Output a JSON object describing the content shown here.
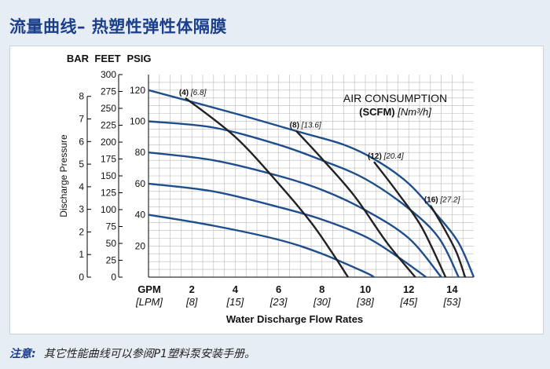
{
  "page": {
    "title": "流量曲线– 热塑性弹性体隔膜",
    "note_label": "注意:",
    "note_text": "其它性能曲线可以参阅P1塑料泵安装手册。"
  },
  "colors": {
    "title": "#1b3f8a",
    "background": "#e7edf5",
    "grid": "#b9b9b9",
    "pressure_curve": "#1f4e8c",
    "air_curve": "#222222"
  },
  "chart_data": {
    "type": "line",
    "title": "",
    "xlabel": "Water Discharge Flow Rates",
    "ylabel": "Discharge Pressure",
    "x_axis": {
      "unit_primary": "GPM",
      "unit_secondary": "[LPM]",
      "range": [
        0,
        15
      ],
      "ticks": [
        2,
        4,
        6,
        8,
        10,
        12,
        14
      ],
      "secondary_ticks": [
        "[8]",
        "[15]",
        "[23]",
        "[30]",
        "[38]",
        "[45]",
        "[53]"
      ]
    },
    "y_axes": {
      "psig": {
        "label": "PSIG",
        "range": [
          0,
          130
        ],
        "ticks": [
          20,
          40,
          60,
          80,
          100,
          120
        ]
      },
      "feet": {
        "label": "FEET",
        "ticks": [
          0,
          25,
          50,
          75,
          100,
          125,
          150,
          175,
          200,
          225,
          250,
          275,
          300
        ]
      },
      "bar": {
        "label": "BAR",
        "ticks": [
          0,
          1,
          2,
          3,
          4,
          5,
          6,
          7,
          8
        ]
      }
    },
    "grid": true,
    "air_legend": {
      "title": "AIR CONSUMPTION",
      "unit_bold": "(SCFM)",
      "unit_metric": "[Nm³/h]"
    },
    "pressure_series": [
      {
        "points": [
          [
            0,
            120
          ],
          [
            4,
            105
          ],
          [
            7,
            93
          ],
          [
            9,
            85
          ],
          [
            10.5,
            75
          ],
          [
            12,
            60
          ],
          [
            13.3,
            40
          ],
          [
            14.3,
            22
          ],
          [
            15,
            0
          ]
        ]
      },
      {
        "points": [
          [
            0,
            100
          ],
          [
            3,
            96
          ],
          [
            6,
            85
          ],
          [
            8,
            75
          ],
          [
            10,
            63
          ],
          [
            12,
            44
          ],
          [
            13.4,
            25
          ],
          [
            14.3,
            0
          ]
        ]
      },
      {
        "points": [
          [
            0,
            80
          ],
          [
            3,
            75
          ],
          [
            6,
            65
          ],
          [
            8,
            56
          ],
          [
            10,
            43
          ],
          [
            12,
            25
          ],
          [
            13.5,
            0
          ]
        ]
      },
      {
        "points": [
          [
            0,
            60
          ],
          [
            3,
            55
          ],
          [
            6,
            45
          ],
          [
            8,
            37
          ],
          [
            10,
            26
          ],
          [
            11.5,
            13
          ],
          [
            12.8,
            0
          ]
        ]
      },
      {
        "points": [
          [
            0,
            40
          ],
          [
            3,
            33
          ],
          [
            6,
            24
          ],
          [
            8,
            15
          ],
          [
            10,
            3
          ],
          [
            10.4,
            0
          ]
        ]
      }
    ],
    "air_series": [
      {
        "label": "(4)",
        "metric": "[6.8]",
        "points": [
          [
            1.7,
            115
          ],
          [
            4,
            90
          ],
          [
            6,
            60
          ],
          [
            7.5,
            35
          ],
          [
            8.5,
            15
          ],
          [
            9.2,
            0
          ]
        ]
      },
      {
        "label": "(8)",
        "metric": "[13.6]",
        "points": [
          [
            6.8,
            94
          ],
          [
            8,
            76
          ],
          [
            9.5,
            52
          ],
          [
            11,
            22
          ],
          [
            12.3,
            0
          ]
        ]
      },
      {
        "label": "(12)",
        "metric": "[20.4]",
        "points": [
          [
            10.4,
            74
          ],
          [
            11.5,
            54
          ],
          [
            12.6,
            32
          ],
          [
            13.7,
            0
          ]
        ]
      },
      {
        "label": "(16)",
        "metric": "[27.2]",
        "points": [
          [
            13,
            46
          ],
          [
            13.6,
            32
          ],
          [
            14.2,
            16
          ],
          [
            14.6,
            0
          ]
        ]
      }
    ]
  }
}
